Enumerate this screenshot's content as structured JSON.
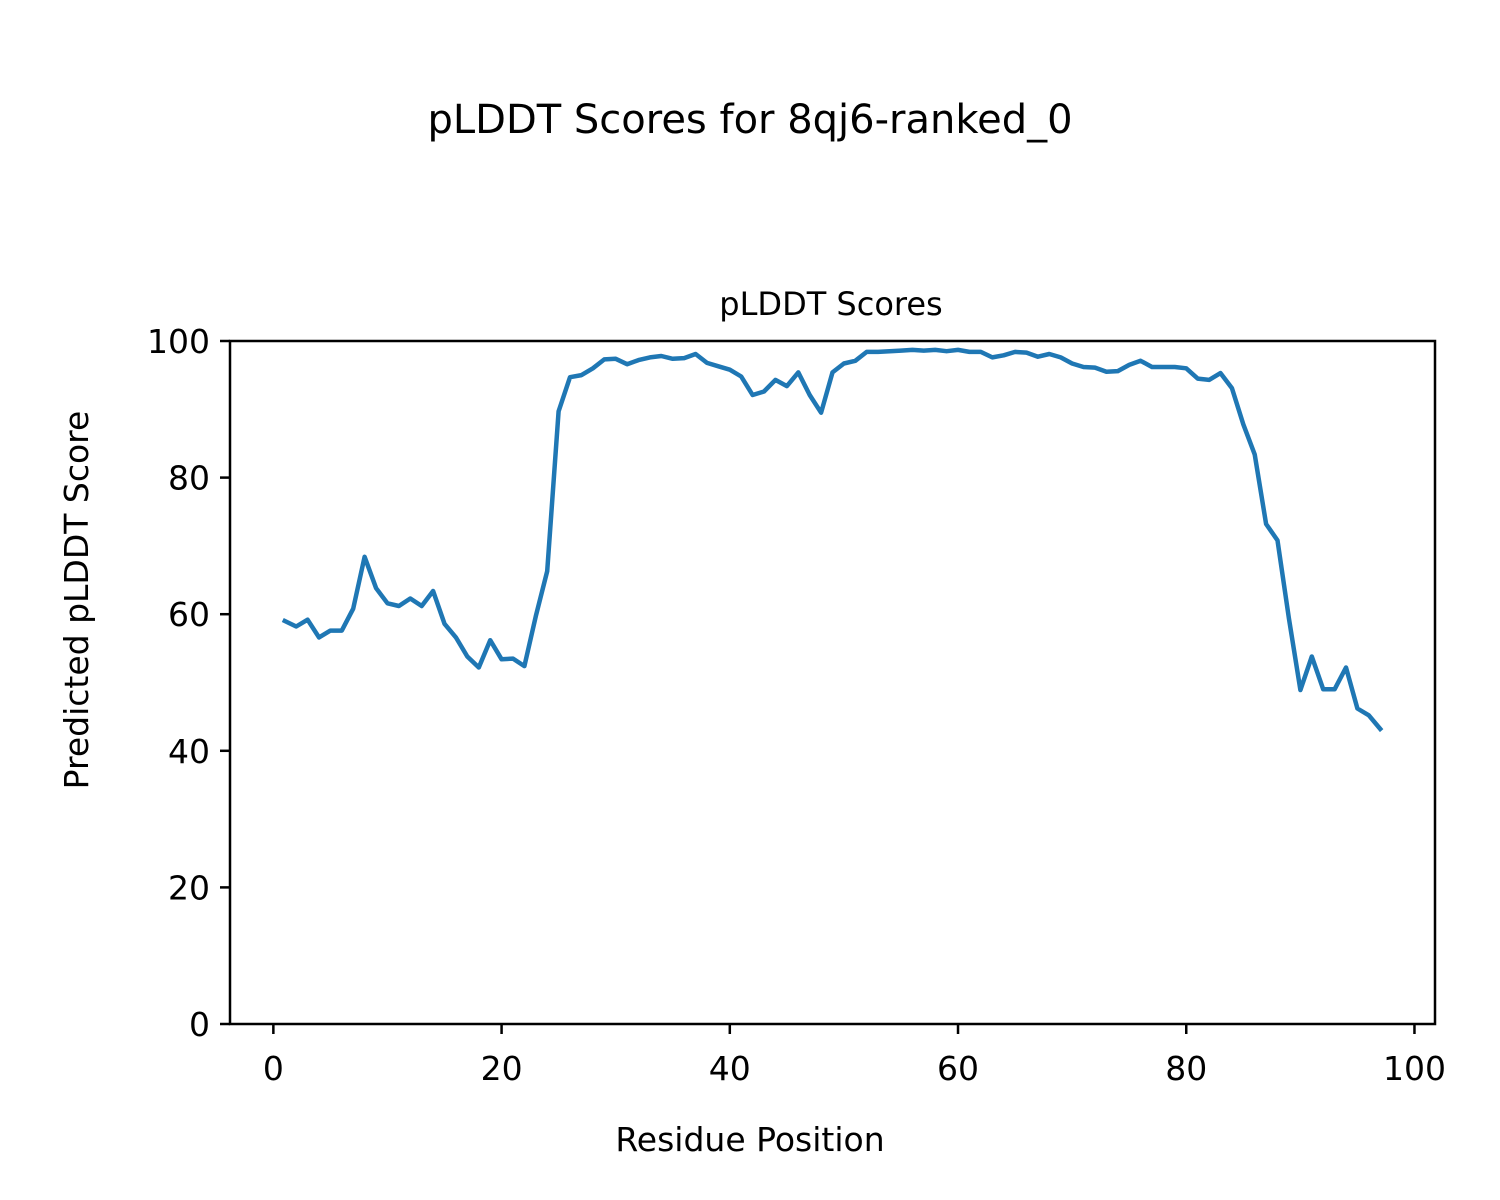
{
  "figure": {
    "suptitle": "pLDDT Scores for 8qj6-ranked_0"
  },
  "chart_data": {
    "type": "line",
    "title": "pLDDT Scores",
    "xlabel": "Residue Position",
    "ylabel": "Predicted pLDDT Score",
    "xlim": [
      -3.8,
      101.8
    ],
    "ylim": [
      0,
      100
    ],
    "xticks": [
      0,
      20,
      40,
      60,
      80,
      100
    ],
    "yticks": [
      0,
      20,
      40,
      60,
      80,
      100
    ],
    "grid": false,
    "line_color": "#1f77b4",
    "series": [
      {
        "x": [
          1,
          2,
          3,
          4,
          5,
          6,
          7,
          8,
          9,
          10,
          11,
          12,
          13,
          14,
          15,
          16,
          17,
          18,
          19,
          20,
          21,
          22,
          23,
          24,
          25,
          26,
          27,
          28,
          29,
          30,
          31,
          32,
          33,
          34,
          35,
          36,
          37,
          38,
          39,
          40,
          41,
          42,
          43,
          44,
          45,
          46,
          47,
          48,
          49,
          50,
          51,
          52,
          53,
          54,
          55,
          56,
          57,
          58,
          59,
          60,
          61,
          62,
          63,
          64,
          65,
          66,
          67,
          68,
          69,
          70,
          71,
          72,
          73,
          74,
          75,
          76,
          77,
          78,
          79,
          80,
          81,
          82,
          83,
          84,
          85,
          86,
          87,
          88,
          89,
          90,
          91,
          92,
          93,
          94,
          95,
          96,
          97
        ],
        "values": [
          59.0,
          58.2,
          59.2,
          56.6,
          57.6,
          57.6,
          60.8,
          68.4,
          63.8,
          61.6,
          61.2,
          62.3,
          61.2,
          63.4,
          58.6,
          56.6,
          53.8,
          52.2,
          56.2,
          53.4,
          53.5,
          52.4,
          59.7,
          66.3,
          89.7,
          94.7,
          95.0,
          96.0,
          97.3,
          97.4,
          96.6,
          97.2,
          97.6,
          97.8,
          97.4,
          97.5,
          98.1,
          96.8,
          96.3,
          95.8,
          94.8,
          92.1,
          92.6,
          94.3,
          93.4,
          95.4,
          92.1,
          89.5,
          95.4,
          96.7,
          97.1,
          98.4,
          98.4,
          98.5,
          98.6,
          98.7,
          98.6,
          98.7,
          98.5,
          98.7,
          98.4,
          98.4,
          97.6,
          97.9,
          98.4,
          98.3,
          97.7,
          98.1,
          97.6,
          96.7,
          96.2,
          96.1,
          95.5,
          95.6,
          96.5,
          97.1,
          96.2,
          96.2,
          96.2,
          96.0,
          94.5,
          94.3,
          95.3,
          93.1,
          87.8,
          83.4,
          73.2,
          70.8,
          59.4,
          48.9,
          53.8,
          49.0,
          49.0,
          52.2,
          46.2,
          45.2,
          43.2
        ]
      }
    ]
  }
}
